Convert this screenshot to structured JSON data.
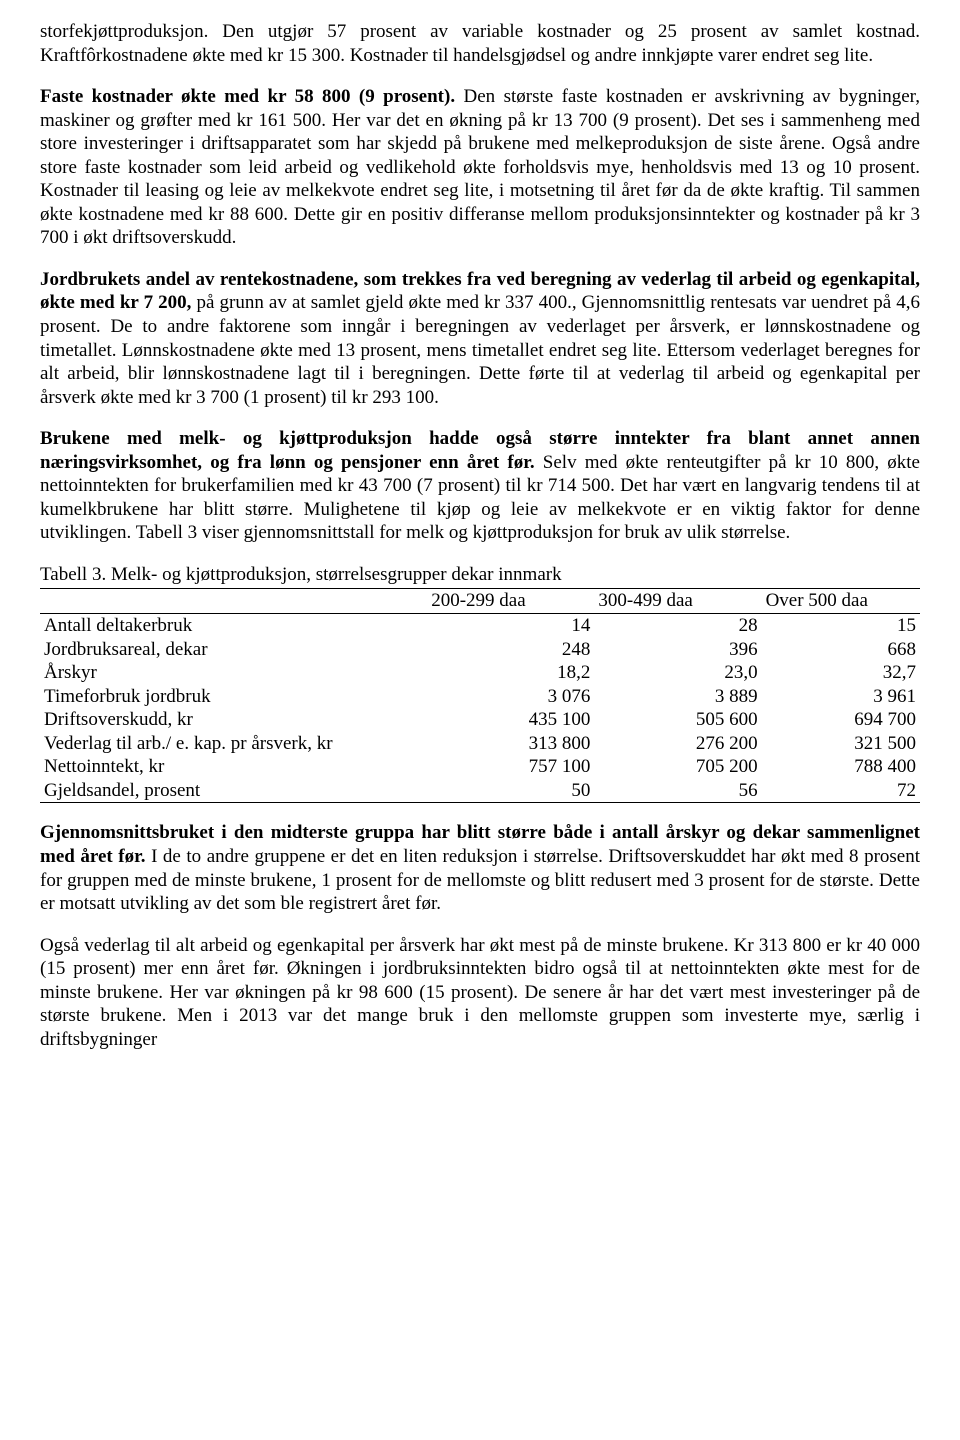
{
  "paragraphs": {
    "p1": "storfekjøttproduksjon. Den utgjør 57 prosent av variable kostnader og 25 prosent av samlet kostnad. Kraftfôrkostnadene økte med kr 15 300. Kostnader til handelsgjødsel og andre innkjøpte varer endret seg lite.",
    "p2_bold": "Faste kostnader økte med  kr 58 800 (9 prosent).",
    "p2_rest": " Den største faste kostnaden er avskrivning av bygninger, maskiner og grøfter med kr 161 500. Her var det en økning på kr 13 700 (9 prosent). Det ses i sammenheng med store investeringer i driftsapparatet som har skjedd på brukene med melkeproduksjon de siste årene. Også andre store faste kostnader som leid arbeid og vedlikehold økte forholdsvis mye, henholdsvis med 13 og 10 prosent. Kostnader til leasing og leie av melkekvote endret seg lite, i motsetning til året før da de økte kraftig. Til sammen økte kostnadene med kr 88 600. Dette gir en positiv differanse mellom produksjonsinntekter og kostnader på kr 3 700 i økt driftsoverskudd.",
    "p3_bold": "Jordbrukets andel av rentekostnadene, som trekkes fra ved beregning av vederlag til arbeid og egenkapital, økte med kr 7 200,",
    "p3_rest": " på grunn av at samlet gjeld økte med kr 337 400., Gjennomsnittlig rentesats var uendret på 4,6 prosent. De to andre faktorene som inngår i beregningen av vederlaget per årsverk, er lønnskostnadene og timetallet. Lønnskostnadene økte med 13 prosent, mens timetallet endret seg lite. Ettersom vederlaget beregnes for alt arbeid, blir lønnskostnadene lagt til i beregningen. Dette førte til at vederlag til arbeid og egenkapital per årsverk økte med kr 3 700 (1 prosent) til kr  293 100.",
    "p4_bold": "Brukene med melk- og kjøttproduksjon hadde også større inntekter fra blant annet annen næringsvirksomhet, og fra lønn og pensjoner enn året før.",
    "p4_rest": " Selv med økte renteutgifter på kr 10 800, økte nettoinntekten for brukerfamilien med kr 43 700 (7 prosent) til kr 714 500. Det har vært en langvarig tendens til at kumelkbrukene har blitt større. Mulighetene til kjøp og leie av melkekvote er en viktig faktor for denne utviklingen. Tabell 3 viser gjennomsnittstall for melk og kjøttproduksjon for bruk av ulik størrelse.",
    "p5_bold": "Gjennomsnittsbruket i den midterste gruppa har blitt større både i antall årskyr og dekar sammenlignet med året før.",
    "p5_rest": " I de to andre gruppene er det en liten reduksjon i størrelse. Driftsoverskuddet har økt med 8 prosent for gruppen med de minste brukene, 1 prosent for de mellomste og blitt redusert med 3 prosent for de største. Dette er motsatt utvikling av det som ble registrert året før.",
    "p6": "Også vederlag til alt arbeid og egenkapital per årsverk har økt mest på de minste brukene. Kr 313 800 er kr 40 000 (15 prosent) mer enn året før. Økningen i jordbruksinntekten bidro også til at nettoinntekten økte mest for de minste brukene. Her var økningen på kr 98 600 (15 prosent). De senere år har det vært mest investeringer på de største brukene. Men i 2013 var det mange bruk i den mellomste gruppen som investerte mye, særlig i driftsbygninger"
  },
  "table": {
    "caption": "Tabell 3. Melk- og kjøttproduksjon, størrelsesgrupper dekar innmark",
    "columns": [
      "",
      "200-299 daa",
      "300-499 daa",
      "Over 500 daa"
    ],
    "rows": [
      {
        "label": "Antall deltakerbruk",
        "values": [
          "14",
          "28",
          "15"
        ]
      },
      {
        "label": "Jordbruksareal, dekar",
        "values": [
          "248",
          "396",
          "668"
        ]
      },
      {
        "label": "Årskyr",
        "values": [
          "18,2",
          "23,0",
          "32,7"
        ]
      },
      {
        "label": "Timeforbruk jordbruk",
        "values": [
          "3 076",
          "3 889",
          "3 961"
        ]
      },
      {
        "label": "Driftsoverskudd, kr",
        "values": [
          "435 100",
          "505 600",
          "694 700"
        ]
      },
      {
        "label": "Vederlag til arb./ e. kap. pr årsverk, kr",
        "values": [
          "313 800",
          "276 200",
          "321 500"
        ]
      },
      {
        "label": "Nettoinntekt, kr",
        "values": [
          "757 100",
          "705 200",
          "788 400"
        ]
      },
      {
        "label": "Gjeldsandel, prosent",
        "values": [
          "50",
          "56",
          "72"
        ]
      }
    ],
    "col_widths": [
      "44%",
      "19%",
      "19%",
      "18%"
    ]
  }
}
